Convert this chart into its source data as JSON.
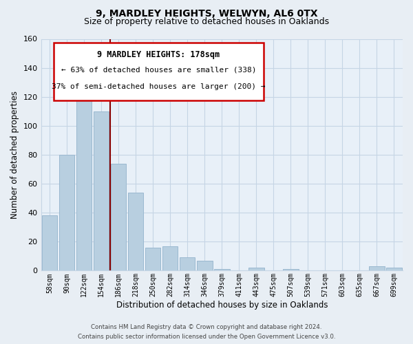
{
  "title": "9, MARDLEY HEIGHTS, WELWYN, AL6 0TX",
  "subtitle": "Size of property relative to detached houses in Oaklands",
  "xlabel": "Distribution of detached houses by size in Oaklands",
  "ylabel": "Number of detached properties",
  "bar_labels": [
    "58sqm",
    "90sqm",
    "122sqm",
    "154sqm",
    "186sqm",
    "218sqm",
    "250sqm",
    "282sqm",
    "314sqm",
    "346sqm",
    "379sqm",
    "411sqm",
    "443sqm",
    "475sqm",
    "507sqm",
    "539sqm",
    "571sqm",
    "603sqm",
    "635sqm",
    "667sqm",
    "699sqm"
  ],
  "bar_values": [
    38,
    80,
    134,
    110,
    74,
    54,
    16,
    17,
    9,
    7,
    1,
    0,
    2,
    0,
    1,
    0,
    0,
    0,
    0,
    3,
    2
  ],
  "bar_color": "#b8cfe0",
  "bar_edge_color": "#9ab8d0",
  "vline_pos": 3.5,
  "vline_color": "#880000",
  "ylim": [
    0,
    160
  ],
  "yticks": [
    0,
    20,
    40,
    60,
    80,
    100,
    120,
    140,
    160
  ],
  "annotation_title": "9 MARDLEY HEIGHTS: 178sqm",
  "annotation_line1": "← 63% of detached houses are smaller (338)",
  "annotation_line2": "37% of semi-detached houses are larger (200) →",
  "footer1": "Contains HM Land Registry data © Crown copyright and database right 2024.",
  "footer2": "Contains public sector information licensed under the Open Government Licence v3.0.",
  "bg_color": "#e8eef4",
  "plot_bg_color": "#e8f0f8",
  "grid_color": "#c5d5e5",
  "title_fontsize": 10,
  "subtitle_fontsize": 9
}
